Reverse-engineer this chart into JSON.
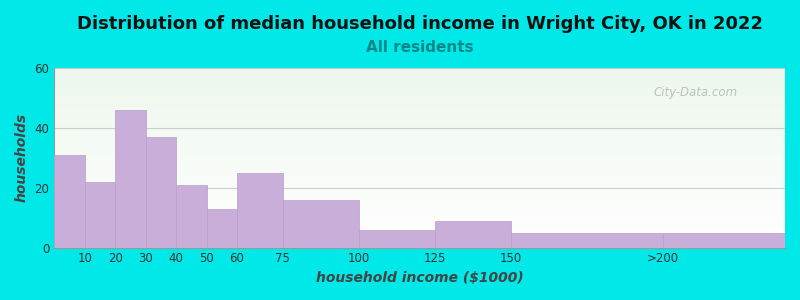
{
  "title": "Distribution of median household income in Wright City, OK in 2022",
  "subtitle": "All residents",
  "xlabel": "household income ($1000)",
  "ylabel": "households",
  "bin_edges": [
    0,
    10,
    20,
    30,
    40,
    50,
    60,
    75,
    100,
    125,
    150,
    200,
    240
  ],
  "bar_values": [
    31,
    22,
    46,
    37,
    21,
    13,
    25,
    16,
    6,
    9,
    5,
    5
  ],
  "tick_positions": [
    10,
    20,
    30,
    40,
    50,
    60,
    75,
    100,
    125,
    150,
    200
  ],
  "tick_labels": [
    "10",
    "20",
    "30",
    "40",
    "50",
    "60",
    "75",
    "100",
    "125",
    "150",
    ">200"
  ],
  "bar_color": "#c9aed9",
  "bar_edge_color": "#b89ec9",
  "ylim": [
    0,
    60
  ],
  "yticks": [
    0,
    20,
    40,
    60
  ],
  "background_outer": "#00e8e8",
  "title_fontsize": 13,
  "subtitle_fontsize": 11,
  "subtitle_color": "#008888",
  "axis_label_fontsize": 10,
  "watermark_text": "City-Data.com",
  "watermark_color": "#aaaaaa",
  "grid_color": "#cccccc"
}
